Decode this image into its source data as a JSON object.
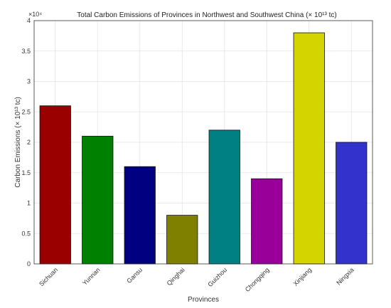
{
  "chart_data": {
    "type": "bar",
    "title": "Total Carbon Emissions of Provinces in Northwest and Southwest China (× 10¹³ tc)",
    "xlabel": "Provinces",
    "ylabel": "Carbon Emissions (× 10¹³ tc)",
    "y_exponent_label": "×10⁴",
    "categories": [
      "Sichuan",
      "Yunnan",
      "Gansu",
      "Qinghai",
      "Guizhou",
      "Chongqing",
      "Xinjiang",
      "Ningxia"
    ],
    "values": [
      26000,
      21000,
      16000,
      8000,
      22000,
      14000,
      38000,
      20000
    ],
    "colors": [
      "#9a0000",
      "#008000",
      "#000080",
      "#808000",
      "#008080",
      "#990099",
      "#d4d400",
      "#3333cc"
    ],
    "ylim": [
      0,
      40000
    ],
    "yticks": [
      0,
      5000,
      10000,
      15000,
      20000,
      25000,
      30000,
      35000,
      40000
    ],
    "ytick_labels": [
      "0",
      "0.5",
      "1",
      "1.5",
      "2",
      "2.5",
      "3",
      "3.5",
      "4"
    ],
    "grid": true,
    "legend": "none"
  }
}
